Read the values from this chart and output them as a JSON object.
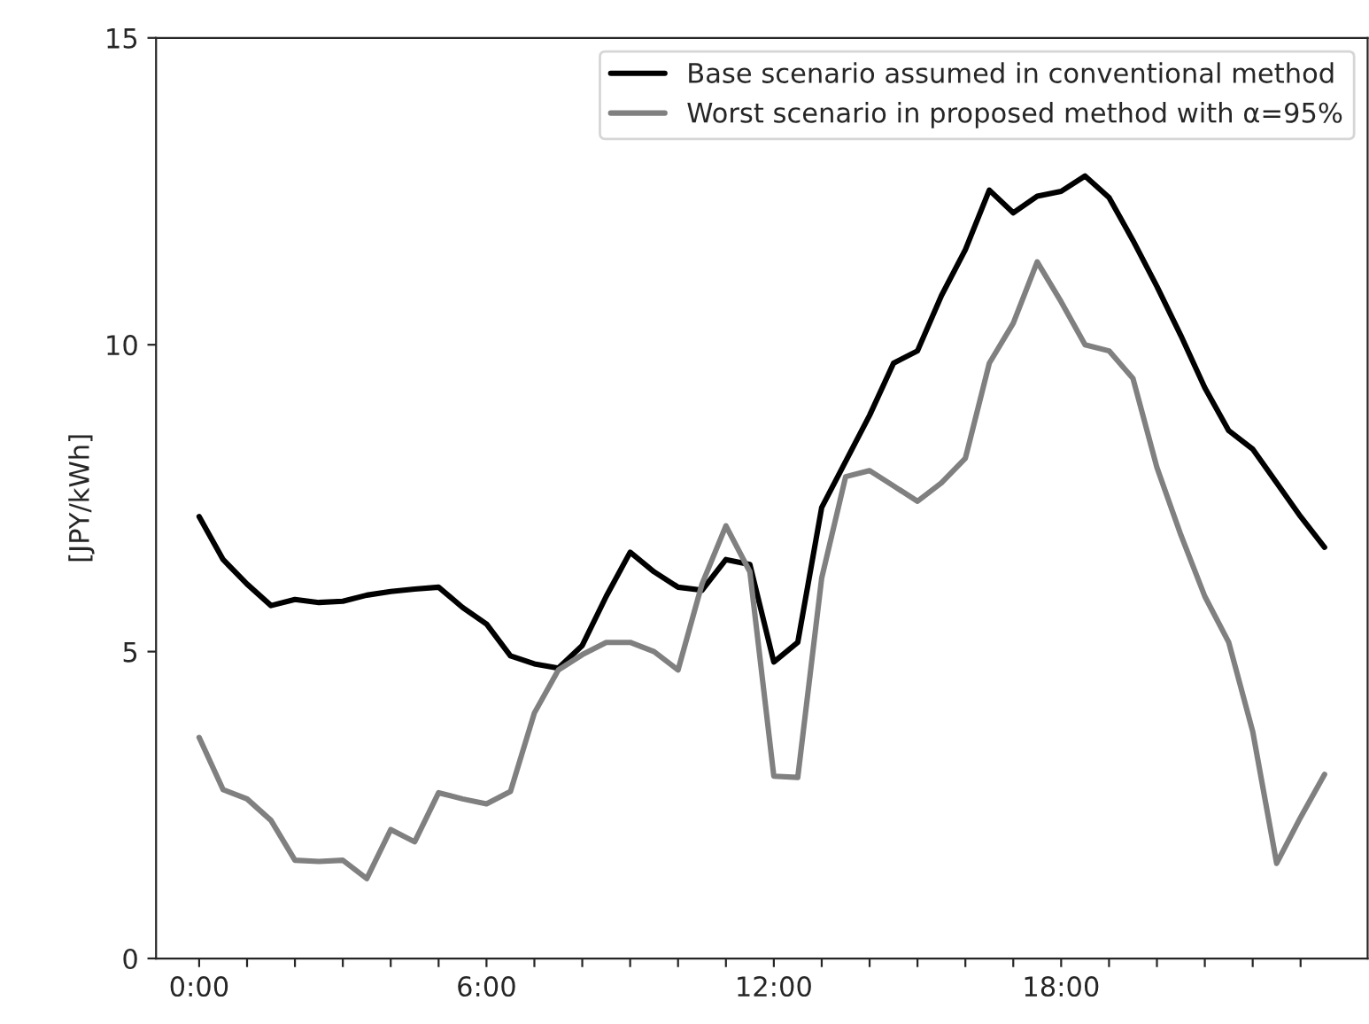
{
  "chart_data": {
    "type": "line",
    "ylabel": "[JPY/kWh]",
    "x": [
      0,
      0.5,
      1,
      1.5,
      2,
      2.5,
      3,
      3.5,
      4,
      4.5,
      5,
      5.5,
      6,
      6.5,
      7,
      7.5,
      8,
      8.5,
      9,
      9.5,
      10,
      10.5,
      11,
      11.5,
      12,
      12.5,
      13,
      13.5,
      14,
      14.5,
      15,
      15.5,
      16,
      16.5,
      17,
      17.5,
      18,
      18.5,
      19,
      19.5,
      20,
      20.5,
      21,
      21.5,
      22,
      22.5,
      23,
      23.5
    ],
    "series": [
      {
        "name": "Base scenario assumed in conventional method",
        "color": "#000000",
        "values": [
          7.2,
          6.5,
          6.1,
          5.75,
          5.85,
          5.8,
          5.82,
          5.92,
          5.98,
          6.02,
          6.05,
          5.72,
          5.45,
          4.93,
          4.8,
          4.73,
          5.1,
          5.9,
          6.62,
          6.3,
          6.05,
          6.0,
          6.5,
          6.42,
          4.83,
          5.15,
          7.35,
          8.1,
          8.85,
          9.7,
          9.9,
          10.8,
          11.55,
          12.52,
          12.15,
          12.42,
          12.5,
          12.75,
          12.4,
          11.7,
          10.95,
          10.15,
          9.3,
          8.6,
          8.3,
          7.75,
          7.2,
          6.7
        ]
      },
      {
        "name": "Worst scenario in proposed method with α=95%",
        "color": "#808080",
        "values": [
          3.6,
          2.75,
          2.6,
          2.25,
          1.6,
          1.58,
          1.6,
          1.3,
          2.1,
          1.9,
          2.7,
          2.6,
          2.52,
          2.72,
          4.0,
          4.7,
          4.95,
          5.15,
          5.15,
          5.0,
          4.7,
          6.1,
          7.05,
          6.3,
          2.97,
          2.95,
          6.2,
          7.85,
          7.95,
          7.7,
          7.45,
          7.75,
          8.15,
          9.7,
          10.35,
          11.35,
          10.7,
          10.0,
          9.9,
          9.45,
          8.0,
          6.9,
          5.9,
          5.15,
          3.7,
          1.55,
          2.3,
          3.0
        ]
      }
    ],
    "xlim": [
      -0.9,
      24.4
    ],
    "xticks": [
      {
        "value": 0,
        "label": "0:00"
      },
      {
        "value": 1,
        "label": null
      },
      {
        "value": 2,
        "label": null
      },
      {
        "value": 3,
        "label": null
      },
      {
        "value": 4,
        "label": null
      },
      {
        "value": 5,
        "label": null
      },
      {
        "value": 6,
        "label": "6:00"
      },
      {
        "value": 7,
        "label": null
      },
      {
        "value": 8,
        "label": null
      },
      {
        "value": 9,
        "label": null
      },
      {
        "value": 10,
        "label": null
      },
      {
        "value": 11,
        "label": null
      },
      {
        "value": 12,
        "label": "12:00"
      },
      {
        "value": 13,
        "label": null
      },
      {
        "value": 14,
        "label": null
      },
      {
        "value": 15,
        "label": null
      },
      {
        "value": 16,
        "label": null
      },
      {
        "value": 17,
        "label": null
      },
      {
        "value": 18,
        "label": "18:00"
      },
      {
        "value": 19,
        "label": null
      },
      {
        "value": 20,
        "label": null
      },
      {
        "value": 21,
        "label": null
      },
      {
        "value": 22,
        "label": null
      },
      {
        "value": 23,
        "label": null
      }
    ],
    "ylim": [
      0,
      15
    ],
    "yticks": [
      0,
      5,
      10,
      15
    ],
    "grid": false,
    "legend": "top right",
    "marker": "none",
    "line_style": "solid"
  }
}
